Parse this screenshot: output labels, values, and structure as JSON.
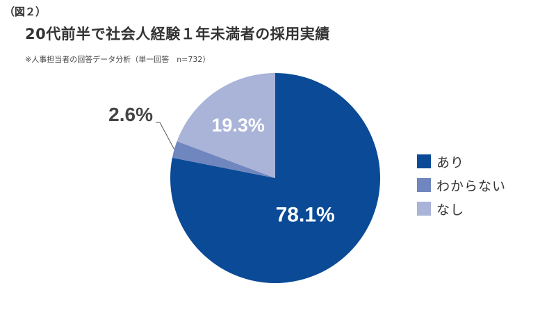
{
  "figure_label": "（図２）",
  "title": "20代前半で社会人経験１年未満者の採用実績",
  "note": "※人事担当者の回答データ分析（単一回答　n=732）",
  "chart_data": {
    "type": "pie",
    "start_angle_deg": 0,
    "direction": "clockwise",
    "slices": [
      {
        "label": "あり",
        "value": 78.1,
        "value_label": "78.1%",
        "color": "#0A4A96",
        "label_color": "#ffffff"
      },
      {
        "label": "わからない",
        "value": 2.6,
        "value_label": "2.6%",
        "color": "#6F86BF",
        "label_color": "#444444"
      },
      {
        "label": "なし",
        "value": 19.3,
        "value_label": "19.3%",
        "color": "#AAB3D8",
        "label_color": "#ffffff"
      }
    ],
    "legend_position": "right"
  }
}
